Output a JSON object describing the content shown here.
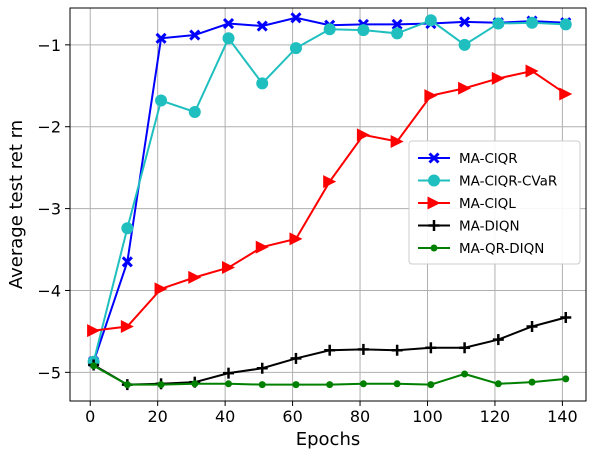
{
  "chart_data": {
    "type": "line",
    "title": "",
    "xlabel": "Epochs",
    "ylabel": "Average test ret  rn",
    "xlim": [
      -6,
      147
    ],
    "ylim": [
      -5.35,
      -0.55
    ],
    "xticks": [
      0,
      20,
      40,
      60,
      80,
      100,
      120,
      140
    ],
    "yticks": [
      -5,
      -4,
      -3,
      -2,
      -1
    ],
    "xtick_labels": [
      "0",
      "20",
      "40",
      "60",
      "80",
      "100",
      "120",
      "140"
    ],
    "ytick_labels": [
      "−5",
      "−4",
      "−3",
      "−2",
      "−1"
    ],
    "grid": true,
    "legend_position": "center-right",
    "x": [
      1,
      11,
      21,
      31,
      41,
      51,
      61,
      71,
      81,
      91,
      101,
      111,
      121,
      131,
      141
    ],
    "series": [
      {
        "name": "MA-ClQR",
        "color": "#0000ff",
        "marker": "x",
        "values": [
          -4.87,
          -3.65,
          -0.92,
          -0.88,
          -0.74,
          -0.77,
          -0.67,
          -0.76,
          -0.75,
          -0.75,
          -0.74,
          -0.72,
          -0.73,
          -0.71,
          -0.73
        ]
      },
      {
        "name": "MA-ClQR-CVaR",
        "color": "#1fbfbf",
        "marker": "circle",
        "values": [
          -4.87,
          -3.24,
          -1.68,
          -1.82,
          -0.92,
          -1.47,
          -1.04,
          -0.81,
          -0.82,
          -0.86,
          -0.7,
          -1.0,
          -0.74,
          -0.73,
          -0.75
        ]
      },
      {
        "name": "MA-ClQL",
        "color": "#ff0000",
        "marker": "triangle-right",
        "values": [
          -4.49,
          -4.44,
          -3.98,
          -3.84,
          -3.72,
          -3.47,
          -3.37,
          -2.67,
          -2.1,
          -2.18,
          -1.62,
          -1.53,
          -1.41,
          -1.32,
          -1.6
        ]
      },
      {
        "name": "MA-DIQN",
        "color": "#000000",
        "marker": "plus",
        "values": [
          -4.91,
          -5.15,
          -5.14,
          -5.12,
          -5.01,
          -4.95,
          -4.83,
          -4.73,
          -4.72,
          -4.73,
          -4.7,
          -4.7,
          -4.6,
          -4.44,
          -4.33
        ]
      },
      {
        "name": "MA-QR-DIQN",
        "color": "#008000",
        "marker": "dot",
        "values": [
          -4.92,
          -5.15,
          -5.15,
          -5.14,
          -5.14,
          -5.15,
          -5.15,
          -5.15,
          -5.14,
          -5.14,
          -5.15,
          -5.02,
          -5.14,
          -5.12,
          -5.08
        ]
      }
    ]
  }
}
